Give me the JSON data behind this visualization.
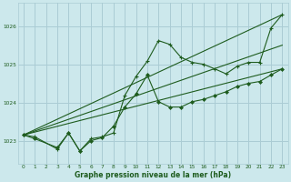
{
  "background_color": "#cce8ec",
  "grid_color": "#aaccd4",
  "line_color": "#1e5c1e",
  "text_color": "#1e5c1e",
  "xlabel": "Graphe pression niveau de la mer (hPa)",
  "ylim": [
    1022.4,
    1026.6
  ],
  "xlim": [
    -0.5,
    23.5
  ],
  "yticks": [
    1023,
    1024,
    1025,
    1026
  ],
  "xticks": [
    0,
    1,
    2,
    3,
    4,
    5,
    6,
    7,
    8,
    9,
    10,
    11,
    12,
    13,
    14,
    15,
    16,
    17,
    18,
    19,
    20,
    21,
    22,
    23
  ],
  "series1_x": [
    0,
    1,
    3,
    4,
    5,
    6,
    7,
    8,
    9,
    10,
    11,
    12,
    13,
    14,
    15,
    16,
    17,
    18,
    19,
    20,
    21,
    22,
    23
  ],
  "series1_y": [
    1023.15,
    1023.1,
    1022.78,
    1023.2,
    1022.73,
    1023.05,
    1023.1,
    1023.2,
    1024.18,
    1024.68,
    1025.08,
    1025.62,
    1025.52,
    1025.18,
    1025.05,
    1025.0,
    1024.88,
    1024.75,
    1024.95,
    1025.05,
    1025.05,
    1025.95,
    1026.3
  ],
  "series2_x": [
    0,
    1,
    3,
    4,
    5,
    6,
    7,
    8,
    9,
    10,
    11,
    12,
    13,
    14,
    15,
    16,
    17,
    18,
    19,
    20,
    21,
    22,
    23
  ],
  "series2_y": [
    1023.15,
    1023.05,
    1022.82,
    1023.2,
    1022.73,
    1023.0,
    1023.08,
    1023.38,
    1023.88,
    1024.22,
    1024.72,
    1024.02,
    1023.88,
    1023.88,
    1024.02,
    1024.08,
    1024.18,
    1024.28,
    1024.42,
    1024.5,
    1024.55,
    1024.72,
    1024.88
  ],
  "line1_x": [
    0,
    23
  ],
  "line1_y": [
    1023.15,
    1026.3
  ],
  "line2_x": [
    0,
    23
  ],
  "line2_y": [
    1023.15,
    1024.88
  ],
  "line3_x": [
    0,
    23
  ],
  "line3_y": [
    1023.15,
    1025.5
  ]
}
